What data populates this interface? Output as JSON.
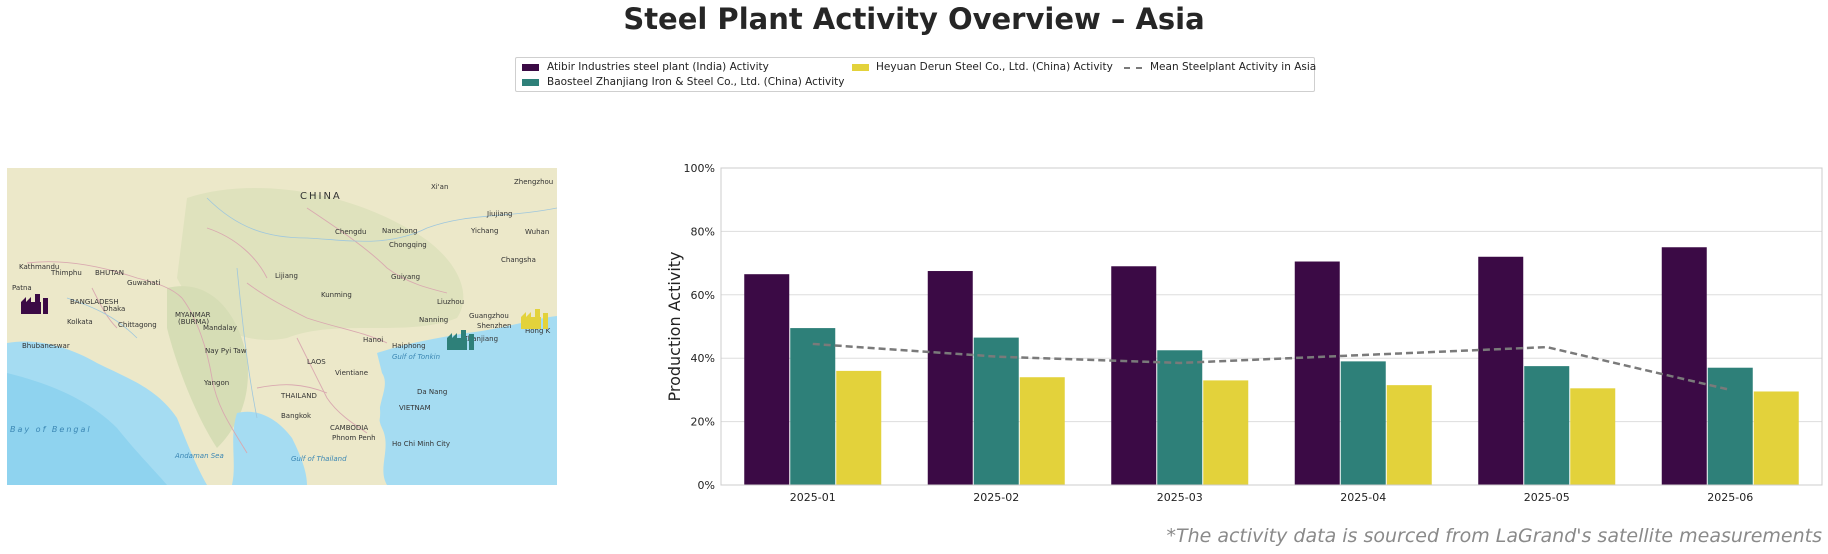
{
  "title": "Steel Plant Activity Overview – Asia",
  "footnote": "*The activity data is sourced from LaGrand's satellite measurements",
  "colors": {
    "atibir": "#3b0a45",
    "baosteel": "#2e8079",
    "heyuan": "#e3d23b",
    "mean": "#7a7a7a",
    "grid": "#dddddd"
  },
  "map": {
    "country_label": "CHINA",
    "cities": [
      "Xi'an",
      "Zhengzhou",
      "Chengdu",
      "Nanchong",
      "Yichang",
      "Wuhan",
      "Jiujiang",
      "Chongqing",
      "Changsha",
      "Kathmandu",
      "Thimphu",
      "BHUTAN",
      "Guwahati",
      "Lijiang",
      "Guiyang",
      "Kunming",
      "Liuzhou",
      "Patna",
      "Dhaka",
      "BANGLADESH",
      "Kolkata",
      "Chittagong",
      "MYANMAR",
      "(BURMA)",
      "Mandalay",
      "Nanning",
      "Guangzhou",
      "Shenzhen",
      "Hong Kong",
      "Zhanjiang",
      "Bhubaneswar",
      "Nay Pyi Taw",
      "Hanoi",
      "Haiphong",
      "Gulf of Tonkin",
      "LAOS",
      "Vientiane",
      "Yangon",
      "THAILAND",
      "Da Nang",
      "VIETNAM",
      "Bangkok",
      "CAMBODIA",
      "Phnom Penh",
      "Ho Chi Minh City",
      "Bay of Bengal",
      "Andaman Sea",
      "Gulf of Thailand"
    ],
    "markers": [
      "factory-icon-atibir",
      "factory-icon-baosteel",
      "factory-icon-heyuan"
    ]
  },
  "chart_data": {
    "type": "bar",
    "categories": [
      "2025-01",
      "2025-02",
      "2025-03",
      "2025-04",
      "2025-05",
      "2025-06"
    ],
    "series": [
      {
        "name": "Atibir Industries steel plant (India) Activity",
        "values": [
          66.5,
          67.5,
          69,
          70.5,
          72,
          75
        ]
      },
      {
        "name": "Baosteel Zhanjiang Iron & Steel Co., Ltd. (China) Activity",
        "values": [
          49.5,
          46.5,
          42.5,
          39,
          37.5,
          37
        ]
      },
      {
        "name": "Heyuan Derun Steel Co., Ltd. (China) Activity",
        "values": [
          36,
          34,
          33,
          31.5,
          30.5,
          29.5
        ]
      }
    ],
    "mean_line": {
      "name": "Mean Steelplant Activity in Asia",
      "values": [
        44.5,
        40.5,
        38.5,
        41,
        43.5,
        30
      ]
    },
    "xlabel": "",
    "ylabel": "Production Activity",
    "ylim": [
      0,
      100
    ],
    "yticks": [
      "0%",
      "20%",
      "40%",
      "60%",
      "80%",
      "100%"
    ],
    "grid": true,
    "legend": "top-center"
  }
}
